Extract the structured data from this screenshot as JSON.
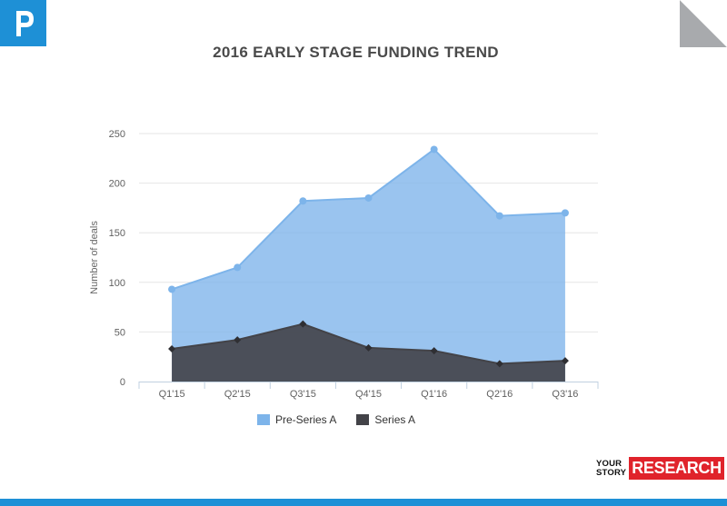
{
  "header": {
    "title": "2016 EARLY STAGE FUNDING TREND"
  },
  "brand": {
    "line1": "YOUR",
    "line2": "STORY",
    "research": "RESEARCH",
    "logo_icon": "p-flag-icon",
    "accent_color": "#1e90d6",
    "research_color": "#e0232b"
  },
  "chart_data": {
    "type": "area",
    "categories": [
      "Q1'15",
      "Q2'15",
      "Q3'15",
      "Q4'15",
      "Q1'16",
      "Q2'16",
      "Q3'16"
    ],
    "series": [
      {
        "name": "Pre-Series A",
        "values": [
          93,
          115,
          182,
          185,
          234,
          167,
          170
        ],
        "color": "#7db4ea"
      },
      {
        "name": "Series A",
        "values": [
          33,
          42,
          58,
          34,
          31,
          18,
          21
        ],
        "color": "#434348"
      }
    ],
    "ylabel": "Number of deals",
    "ylim": [
      0,
      250
    ],
    "yticks": [
      0,
      50,
      100,
      150,
      200,
      250
    ],
    "grid": true,
    "legend": "bottom"
  }
}
